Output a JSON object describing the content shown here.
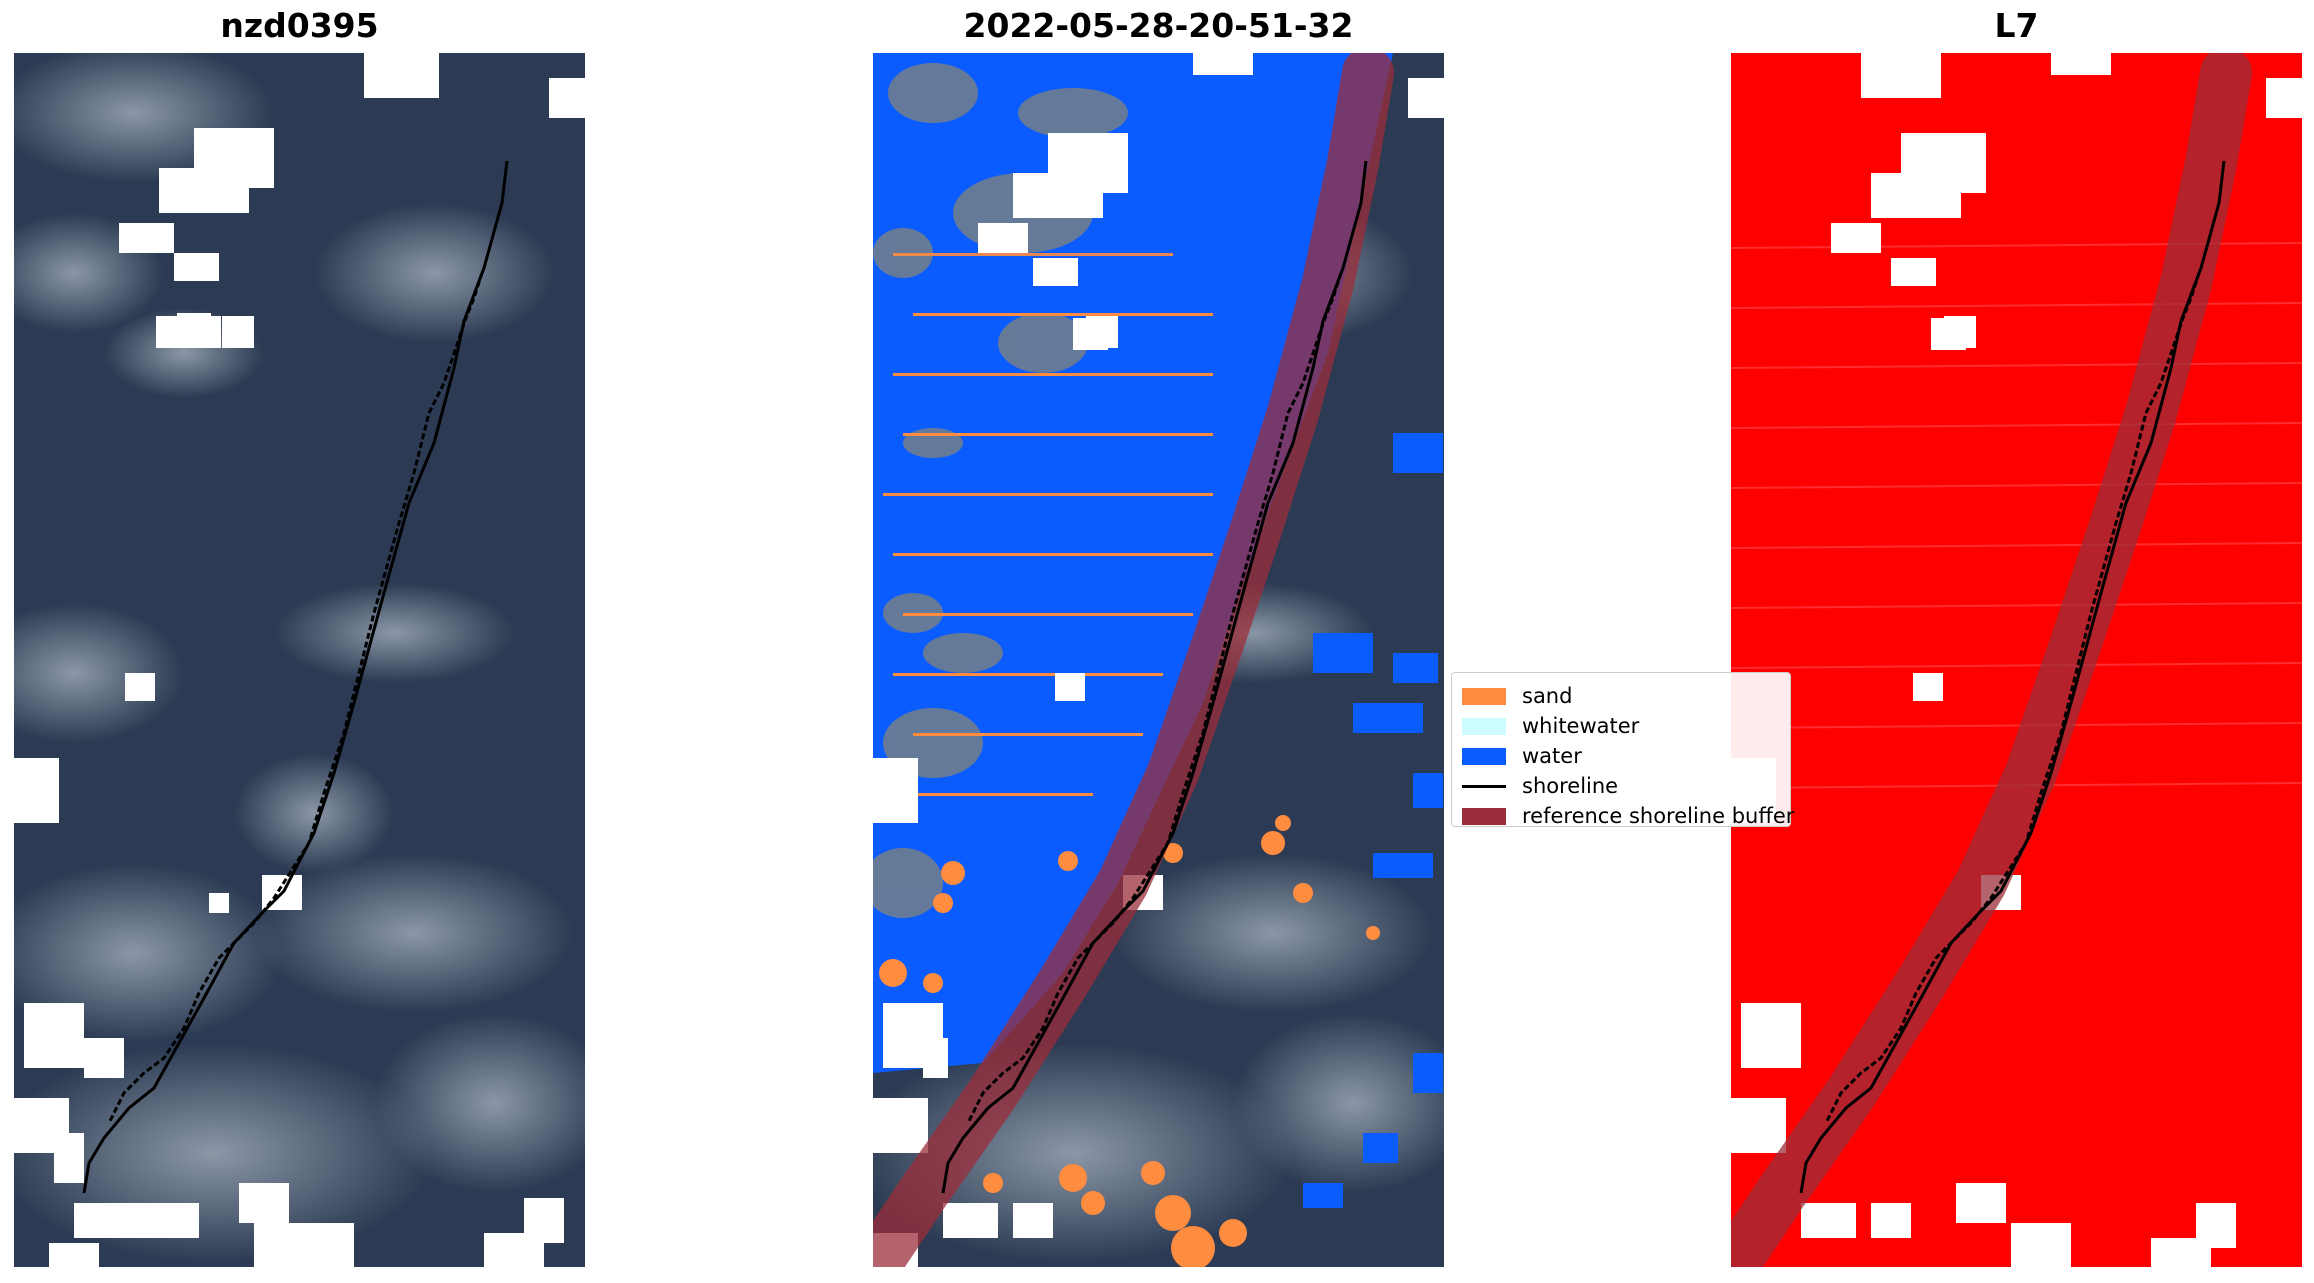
{
  "panels": [
    {
      "title": "nzd0395"
    },
    {
      "title": "2022-05-28-20-51-32"
    },
    {
      "title": "L7"
    }
  ],
  "legend": {
    "items": [
      {
        "label": "sand",
        "color": "#ff8c3f",
        "kind": "patch"
      },
      {
        "label": "whitewater",
        "color": "#ccfcff",
        "kind": "patch"
      },
      {
        "label": "water",
        "color": "#0a5cff",
        "kind": "patch"
      },
      {
        "label": "shoreline",
        "color": "#000000",
        "kind": "line"
      },
      {
        "label": "reference shoreline buffer",
        "color": "#9b2d3a",
        "kind": "patch"
      }
    ]
  },
  "colors": {
    "imagery_dark": "#2b3a52",
    "cloud_mask": "#ffffff",
    "water": "#0a5cff",
    "sand": "#ff8c3f",
    "buffer": "#9b2d3a",
    "red_panel": "#ff0000"
  }
}
